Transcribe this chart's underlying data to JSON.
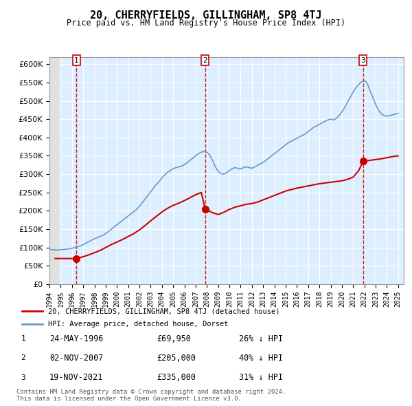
{
  "title": "20, CHERRYFIELDS, GILLINGHAM, SP8 4TJ",
  "subtitle": "Price paid vs. HM Land Registry's House Price Index (HPI)",
  "ylabel": "",
  "ylim": [
    0,
    620000
  ],
  "yticks": [
    0,
    50000,
    100000,
    150000,
    200000,
    250000,
    300000,
    350000,
    400000,
    450000,
    500000,
    550000,
    600000
  ],
  "xlim_start": 1994.0,
  "xlim_end": 2025.5,
  "hpi_color": "#6699cc",
  "price_color": "#cc0000",
  "vline_color": "#cc0000",
  "background_color": "#ddeeff",
  "hatch_color": "#cccccc",
  "grid_color": "#ffffff",
  "sale_dates": [
    1996.39,
    2007.84,
    2021.88
  ],
  "sale_prices": [
    69950,
    205000,
    335000
  ],
  "sale_labels": [
    "1",
    "2",
    "3"
  ],
  "sale_info": [
    {
      "num": "1",
      "date": "24-MAY-1996",
      "price": "£69,950",
      "pct": "26% ↓ HPI"
    },
    {
      "num": "2",
      "date": "02-NOV-2007",
      "price": "£205,000",
      "pct": "40% ↓ HPI"
    },
    {
      "num": "3",
      "date": "19-NOV-2021",
      "price": "£335,000",
      "pct": "31% ↓ HPI"
    }
  ],
  "legend_entries": [
    "20, CHERRYFIELDS, GILLINGHAM, SP8 4TJ (detached house)",
    "HPI: Average price, detached house, Dorset"
  ],
  "footnote": "Contains HM Land Registry data © Crown copyright and database right 2024.\nThis data is licensed under the Open Government Licence v3.0.",
  "hpi_years": [
    1994.0,
    1994.25,
    1994.5,
    1994.75,
    1995.0,
    1995.25,
    1995.5,
    1995.75,
    1996.0,
    1996.25,
    1996.5,
    1996.75,
    1997.0,
    1997.25,
    1997.5,
    1997.75,
    1998.0,
    1998.25,
    1998.5,
    1998.75,
    1999.0,
    1999.25,
    1999.5,
    1999.75,
    2000.0,
    2000.25,
    2000.5,
    2000.75,
    2001.0,
    2001.25,
    2001.5,
    2001.75,
    2002.0,
    2002.25,
    2002.5,
    2002.75,
    2003.0,
    2003.25,
    2003.5,
    2003.75,
    2004.0,
    2004.25,
    2004.5,
    2004.75,
    2005.0,
    2005.25,
    2005.5,
    2005.75,
    2006.0,
    2006.25,
    2006.5,
    2006.75,
    2007.0,
    2007.25,
    2007.5,
    2007.75,
    2008.0,
    2008.25,
    2008.5,
    2008.75,
    2009.0,
    2009.25,
    2009.5,
    2009.75,
    2010.0,
    2010.25,
    2010.5,
    2010.75,
    2011.0,
    2011.25,
    2011.5,
    2011.75,
    2012.0,
    2012.25,
    2012.5,
    2012.75,
    2013.0,
    2013.25,
    2013.5,
    2013.75,
    2014.0,
    2014.25,
    2014.5,
    2014.75,
    2015.0,
    2015.25,
    2015.5,
    2015.75,
    2016.0,
    2016.25,
    2016.5,
    2016.75,
    2017.0,
    2017.25,
    2017.5,
    2017.75,
    2018.0,
    2018.25,
    2018.5,
    2018.75,
    2019.0,
    2019.25,
    2019.5,
    2019.75,
    2020.0,
    2020.25,
    2020.5,
    2020.75,
    2021.0,
    2021.25,
    2021.5,
    2021.75,
    2022.0,
    2022.25,
    2022.5,
    2022.75,
    2023.0,
    2023.25,
    2023.5,
    2023.75,
    2024.0,
    2024.25,
    2024.5,
    2024.75,
    2025.0
  ],
  "hpi_values": [
    94500,
    94000,
    93500,
    93000,
    94000,
    95000,
    95500,
    96500,
    98000,
    100000,
    102000,
    104000,
    108000,
    112000,
    116000,
    120000,
    124000,
    127000,
    130000,
    133000,
    138000,
    144000,
    150000,
    156000,
    162000,
    168000,
    174000,
    180000,
    186000,
    192000,
    198000,
    204000,
    212000,
    222000,
    232000,
    242000,
    252000,
    262000,
    272000,
    280000,
    290000,
    298000,
    305000,
    310000,
    315000,
    318000,
    320000,
    322000,
    326000,
    332000,
    338000,
    344000,
    350000,
    356000,
    360000,
    362000,
    360000,
    352000,
    338000,
    320000,
    308000,
    302000,
    300000,
    304000,
    310000,
    315000,
    318000,
    316000,
    314000,
    318000,
    320000,
    318000,
    316000,
    320000,
    324000,
    328000,
    332000,
    338000,
    344000,
    350000,
    356000,
    362000,
    368000,
    374000,
    380000,
    386000,
    390000,
    394000,
    398000,
    402000,
    406000,
    410000,
    416000,
    422000,
    428000,
    432000,
    436000,
    440000,
    444000,
    448000,
    450000,
    448000,
    452000,
    460000,
    470000,
    482000,
    496000,
    510000,
    524000,
    536000,
    545000,
    552000,
    556000,
    548000,
    528000,
    510000,
    490000,
    475000,
    465000,
    460000,
    458000,
    460000,
    462000,
    464000,
    466000
  ],
  "price_years": [
    1994.5,
    1995.5,
    1996.39,
    1997.0,
    1997.5,
    1998.0,
    1998.5,
    1999.0,
    1999.5,
    2000.0,
    2000.5,
    2001.0,
    2001.5,
    2002.0,
    2002.5,
    2003.0,
    2003.5,
    2004.0,
    2004.5,
    2005.0,
    2005.5,
    2006.0,
    2006.5,
    2007.0,
    2007.5,
    2007.84,
    2008.5,
    2009.0,
    2009.5,
    2010.0,
    2010.5,
    2011.0,
    2011.5,
    2012.0,
    2012.5,
    2013.0,
    2013.5,
    2014.0,
    2014.5,
    2015.0,
    2015.5,
    2016.0,
    2016.5,
    2017.0,
    2017.5,
    2018.0,
    2018.5,
    2019.0,
    2019.5,
    2020.0,
    2020.5,
    2021.0,
    2021.5,
    2021.88,
    2023.0,
    2023.5,
    2024.0,
    2024.5,
    2025.0
  ],
  "price_values": [
    69950,
    69950,
    69950,
    75000,
    80000,
    86000,
    92000,
    100000,
    108000,
    115000,
    122000,
    130000,
    138000,
    148000,
    160000,
    173000,
    185000,
    197000,
    207000,
    215000,
    221000,
    228000,
    236000,
    244000,
    250000,
    205000,
    195000,
    190000,
    196000,
    204000,
    210000,
    214000,
    218000,
    220000,
    224000,
    230000,
    236000,
    242000,
    248000,
    254000,
    258000,
    262000,
    265000,
    268000,
    271000,
    274000,
    276000,
    278000,
    280000,
    282000,
    286000,
    292000,
    310000,
    335000,
    340000,
    342000,
    345000,
    348000,
    350000
  ]
}
